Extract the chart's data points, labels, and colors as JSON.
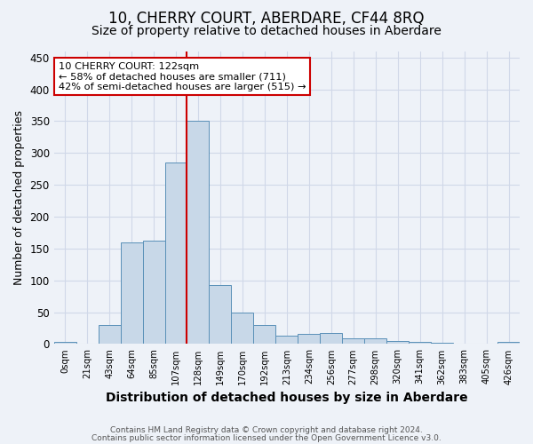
{
  "title": "10, CHERRY COURT, ABERDARE, CF44 8RQ",
  "subtitle": "Size of property relative to detached houses in Aberdare",
  "xlabel": "Distribution of detached houses by size in Aberdare",
  "ylabel": "Number of detached properties",
  "footnote1": "Contains HM Land Registry data © Crown copyright and database right 2024.",
  "footnote2": "Contains public sector information licensed under the Open Government Licence v3.0.",
  "bar_labels": [
    "0sqm",
    "21sqm",
    "43sqm",
    "64sqm",
    "85sqm",
    "107sqm",
    "128sqm",
    "149sqm",
    "170sqm",
    "192sqm",
    "213sqm",
    "234sqm",
    "256sqm",
    "277sqm",
    "298sqm",
    "320sqm",
    "341sqm",
    "362sqm",
    "383sqm",
    "405sqm",
    "426sqm"
  ],
  "bar_values": [
    3,
    0,
    30,
    160,
    163,
    285,
    350,
    93,
    49,
    30,
    13,
    16,
    17,
    9,
    9,
    5,
    4,
    2,
    0,
    0,
    4
  ],
  "bar_color": "#c8d8e8",
  "bar_edge_color": "#5a90b8",
  "highlight_bar_index": 6,
  "highlight_color": "#cc0000",
  "annotation_line1": "10 CHERRY COURT: 122sqm",
  "annotation_line2": "← 58% of detached houses are smaller (711)",
  "annotation_line3": "42% of semi-detached houses are larger (515) →",
  "annotation_box_color": "#cc0000",
  "annotation_box_fill": "#ffffff",
  "ylim": [
    0,
    460
  ],
  "yticks": [
    0,
    50,
    100,
    150,
    200,
    250,
    300,
    350,
    400,
    450
  ],
  "grid_color": "#d0d8e8",
  "bg_color": "#eef2f8",
  "title_fontsize": 12,
  "subtitle_fontsize": 10,
  "xlabel_fontsize": 10,
  "ylabel_fontsize": 9
}
